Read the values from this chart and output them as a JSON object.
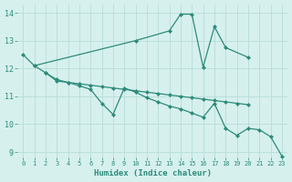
{
  "line1_x": [
    0,
    1,
    10,
    13,
    14,
    15,
    16,
    17,
    18,
    20
  ],
  "line1_y": [
    12.5,
    12.1,
    13.0,
    13.35,
    13.95,
    13.95,
    12.05,
    13.5,
    12.75,
    12.4
  ],
  "line2_x": [
    1,
    2,
    3,
    4,
    5,
    6,
    7,
    8,
    9,
    10,
    11,
    12,
    13,
    14,
    15,
    16,
    17,
    18,
    19,
    20
  ],
  "line2_y": [
    12.1,
    11.85,
    11.55,
    11.5,
    11.45,
    11.4,
    11.35,
    11.3,
    11.25,
    11.2,
    11.15,
    11.1,
    11.05,
    11.0,
    10.95,
    10.9,
    10.85,
    10.8,
    10.75,
    10.7
  ],
  "line3_x": [
    2,
    3,
    4,
    5,
    6,
    7,
    8,
    9,
    10,
    11,
    12,
    13,
    14,
    15,
    16,
    17,
    18,
    19,
    20,
    21,
    22,
    23
  ],
  "line3_y": [
    11.85,
    11.6,
    11.5,
    11.38,
    11.25,
    10.75,
    10.35,
    11.3,
    11.15,
    10.95,
    10.8,
    10.65,
    10.55,
    10.4,
    10.25,
    10.75,
    9.85,
    9.6,
    9.85,
    9.8,
    9.55,
    8.85
  ],
  "line_color": "#2d8b7a",
  "bg_color": "#d6f0ee",
  "grid_color": "#b8dcd8",
  "xlabel": "Humidex (Indice chaleur)",
  "ylim": [
    8.8,
    14.3
  ],
  "xlim": [
    -0.5,
    23.5
  ],
  "yticks": [
    9,
    10,
    11,
    12,
    13,
    14
  ],
  "xticks": [
    0,
    1,
    2,
    3,
    4,
    5,
    6,
    7,
    8,
    9,
    10,
    11,
    12,
    13,
    14,
    15,
    16,
    17,
    18,
    19,
    20,
    21,
    22,
    23
  ]
}
